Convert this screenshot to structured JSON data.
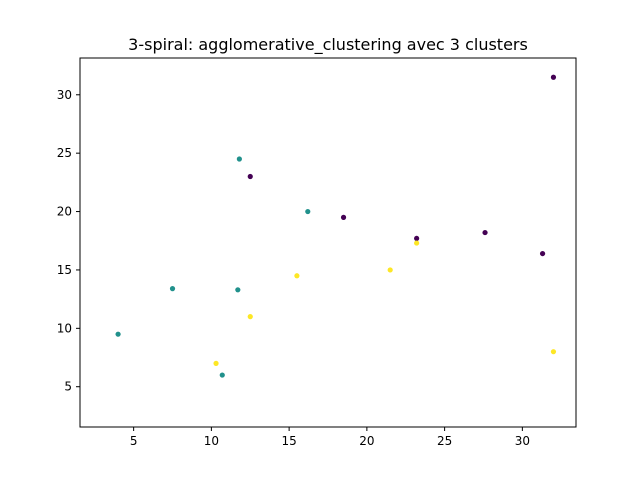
{
  "chart_data": {
    "type": "scatter",
    "title": "3-spiral: agglomerative_clustering avec 3 clusters",
    "xlabel": "",
    "ylabel": "",
    "xlim": [
      1.55,
      33.45
    ],
    "ylim": [
      1.55,
      33.15
    ],
    "xticks": [
      5,
      10,
      15,
      20,
      25,
      30
    ],
    "yticks": [
      5,
      10,
      15,
      20,
      25,
      30
    ],
    "grid": false,
    "legend": "none",
    "colors": {
      "cluster_0": "#440154",
      "cluster_1": "#21918c",
      "cluster_2": "#fde725"
    },
    "series": [
      {
        "cluster": 0,
        "color": "#440154",
        "points": [
          [
            32,
            31.5
          ],
          [
            18.5,
            19.5
          ],
          [
            12.5,
            23
          ],
          [
            23.2,
            17.7
          ],
          [
            27.6,
            18.2
          ],
          [
            31.3,
            16.4
          ]
        ]
      },
      {
        "cluster": 1,
        "color": "#21918c",
        "points": [
          [
            11.8,
            24.5
          ],
          [
            4,
            9.5
          ],
          [
            16.2,
            20
          ],
          [
            11.7,
            13.3
          ],
          [
            7.5,
            13.4
          ],
          [
            10.7,
            6
          ]
        ]
      },
      {
        "cluster": 2,
        "color": "#fde725",
        "points": [
          [
            21.5,
            15
          ],
          [
            23.2,
            17.3
          ],
          [
            15.5,
            14.5
          ],
          [
            12.5,
            11
          ],
          [
            32,
            8
          ],
          [
            10.3,
            7
          ]
        ]
      }
    ]
  }
}
